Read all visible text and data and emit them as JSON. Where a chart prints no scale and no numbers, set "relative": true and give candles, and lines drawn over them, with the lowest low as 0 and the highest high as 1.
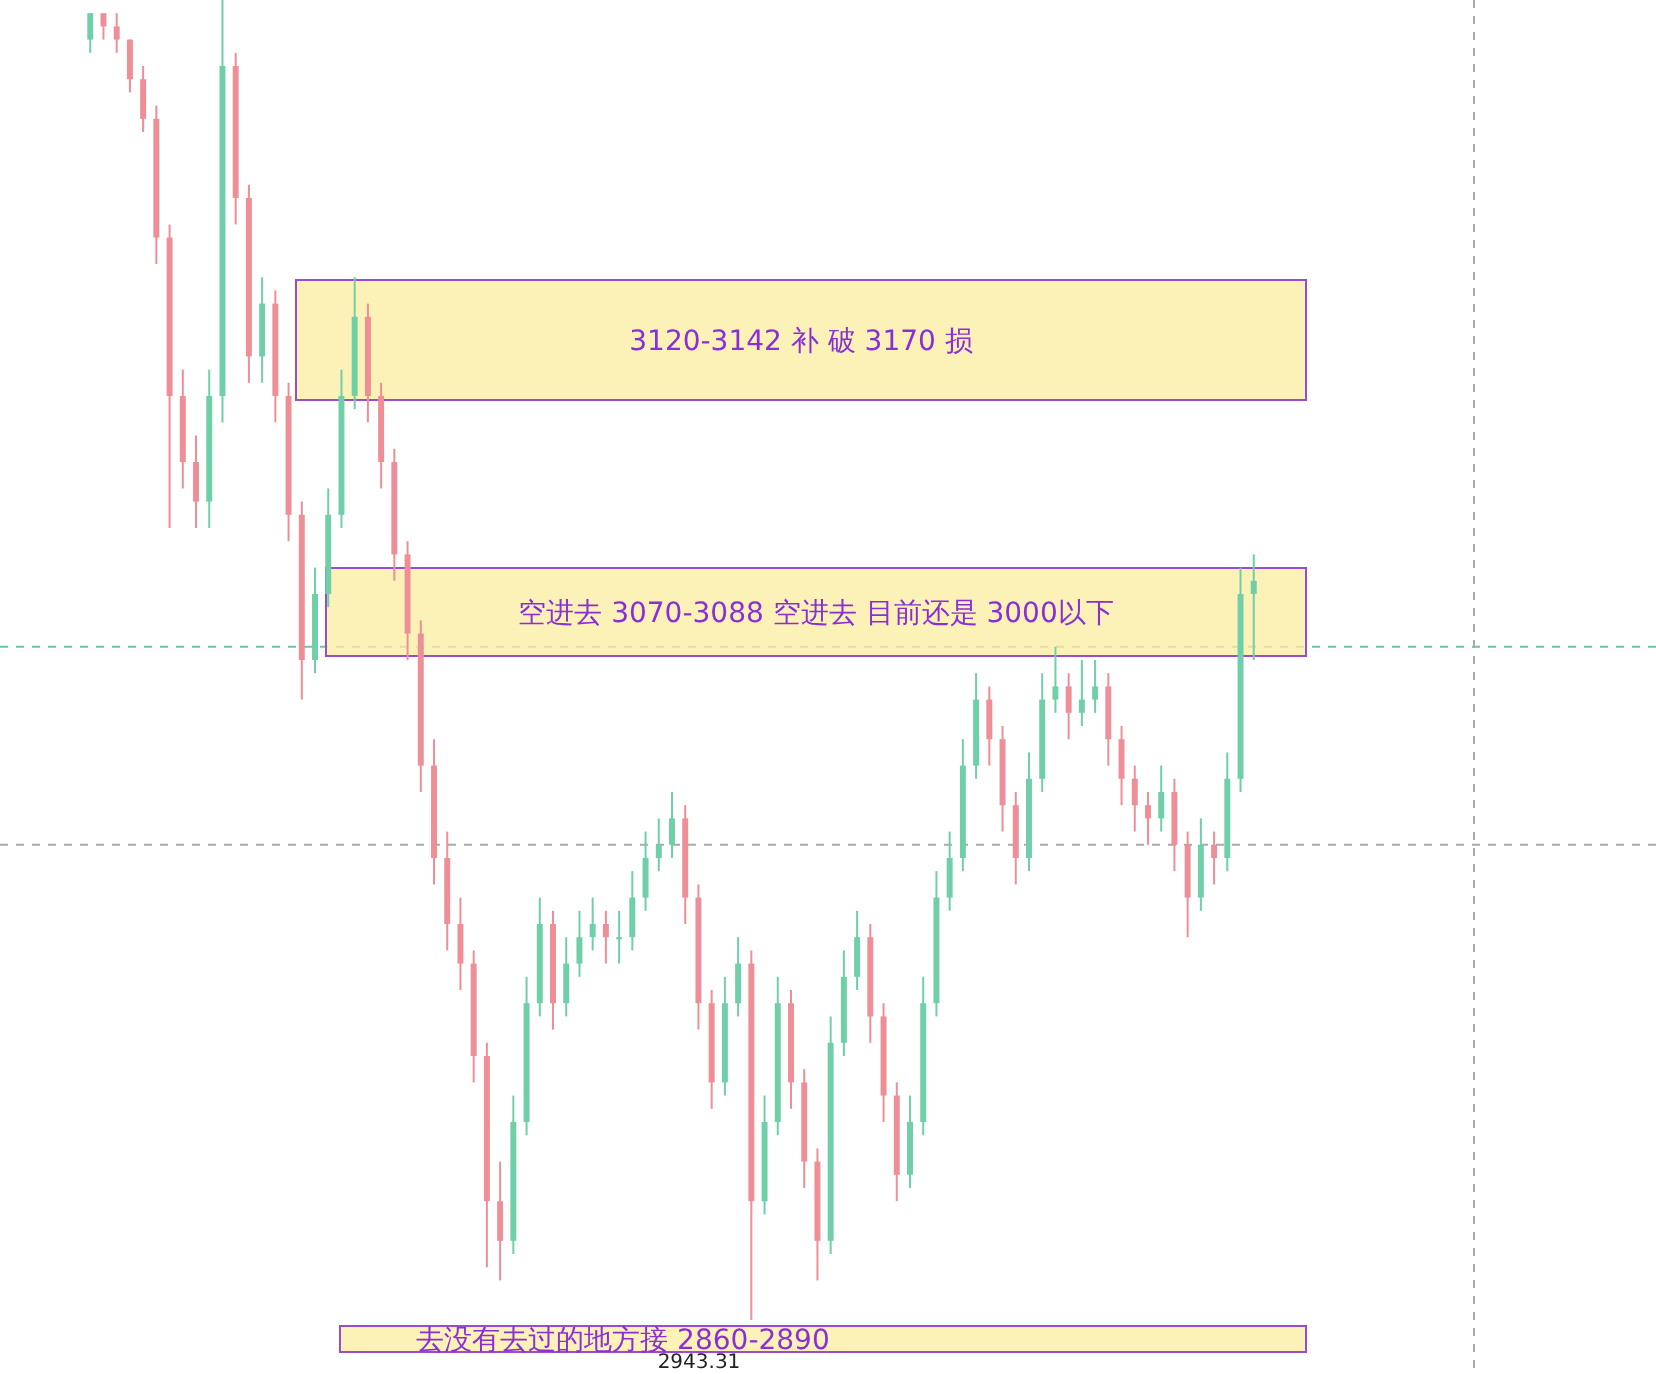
{
  "chart_data": {
    "type": "candlestick",
    "relative": true,
    "tick_labels": false,
    "categories": [
      null,
      null,
      null,
      null,
      null,
      null,
      null,
      null,
      null,
      null,
      null,
      null,
      null,
      null,
      null,
      null,
      null,
      null,
      null,
      null,
      null,
      null,
      null,
      null,
      null,
      null,
      null,
      null,
      null,
      null,
      null,
      null,
      null,
      null,
      null,
      null,
      null,
      null,
      null,
      null,
      null,
      null,
      null,
      null,
      null,
      null,
      null,
      null,
      null,
      null,
      null,
      null,
      null,
      null,
      null,
      null,
      null,
      null,
      null,
      null,
      null,
      null,
      null,
      null,
      null,
      null,
      null,
      null,
      null,
      null,
      null,
      null,
      null,
      null,
      null,
      null,
      null,
      null,
      null,
      null,
      null,
      null,
      null,
      null,
      null,
      null,
      null,
      null,
      null
    ],
    "ohlc": [
      [
        0.97,
        0.99,
        0.96,
        0.99
      ],
      [
        0.99,
        0.99,
        0.97,
        0.98
      ],
      [
        0.98,
        0.99,
        0.96,
        0.97
      ],
      [
        0.97,
        0.97,
        0.93,
        0.94
      ],
      [
        0.94,
        0.95,
        0.9,
        0.91
      ],
      [
        0.91,
        0.92,
        0.8,
        0.82
      ],
      [
        0.82,
        0.83,
        0.6,
        0.7
      ],
      [
        0.7,
        0.72,
        0.63,
        0.65
      ],
      [
        0.65,
        0.67,
        0.6,
        0.62
      ],
      [
        0.62,
        0.72,
        0.6,
        0.7
      ],
      [
        0.7,
        1.0,
        0.68,
        0.95
      ],
      [
        0.95,
        0.96,
        0.83,
        0.85
      ],
      [
        0.85,
        0.86,
        0.71,
        0.73
      ],
      [
        0.73,
        0.79,
        0.71,
        0.77
      ],
      [
        0.77,
        0.78,
        0.68,
        0.7
      ],
      [
        0.7,
        0.71,
        0.59,
        0.61
      ],
      [
        0.61,
        0.62,
        0.47,
        0.5
      ],
      [
        0.5,
        0.57,
        0.49,
        0.55
      ],
      [
        0.55,
        0.63,
        0.54,
        0.61
      ],
      [
        0.61,
        0.72,
        0.6,
        0.7
      ],
      [
        0.7,
        0.79,
        0.69,
        0.76
      ],
      [
        0.76,
        0.77,
        0.68,
        0.7
      ],
      [
        0.7,
        0.71,
        0.63,
        0.65
      ],
      [
        0.65,
        0.66,
        0.56,
        0.58
      ],
      [
        0.58,
        0.59,
        0.5,
        0.52
      ],
      [
        0.52,
        0.53,
        0.4,
        0.42
      ],
      [
        0.42,
        0.44,
        0.33,
        0.35
      ],
      [
        0.35,
        0.37,
        0.28,
        0.3
      ],
      [
        0.3,
        0.32,
        0.25,
        0.27
      ],
      [
        0.27,
        0.28,
        0.18,
        0.2
      ],
      [
        0.2,
        0.21,
        0.04,
        0.09
      ],
      [
        0.09,
        0.12,
        0.03,
        0.06
      ],
      [
        0.06,
        0.17,
        0.05,
        0.15
      ],
      [
        0.15,
        0.26,
        0.14,
        0.24
      ],
      [
        0.24,
        0.32,
        0.23,
        0.3
      ],
      [
        0.3,
        0.31,
        0.22,
        0.24
      ],
      [
        0.24,
        0.29,
        0.23,
        0.27
      ],
      [
        0.27,
        0.31,
        0.26,
        0.29
      ],
      [
        0.29,
        0.32,
        0.28,
        0.3
      ],
      [
        0.3,
        0.31,
        0.27,
        0.29
      ],
      [
        0.29,
        0.31,
        0.27,
        0.29
      ],
      [
        0.29,
        0.34,
        0.28,
        0.32
      ],
      [
        0.32,
        0.37,
        0.31,
        0.35
      ],
      [
        0.35,
        0.38,
        0.34,
        0.36
      ],
      [
        0.36,
        0.4,
        0.35,
        0.38
      ],
      [
        0.38,
        0.39,
        0.3,
        0.32
      ],
      [
        0.32,
        0.33,
        0.22,
        0.24
      ],
      [
        0.24,
        0.25,
        0.16,
        0.18
      ],
      [
        0.18,
        0.26,
        0.17,
        0.24
      ],
      [
        0.24,
        0.29,
        0.23,
        0.27
      ],
      [
        0.27,
        0.28,
        0.0,
        0.09
      ],
      [
        0.09,
        0.17,
        0.08,
        0.15
      ],
      [
        0.15,
        0.26,
        0.14,
        0.24
      ],
      [
        0.24,
        0.25,
        0.16,
        0.18
      ],
      [
        0.18,
        0.19,
        0.1,
        0.12
      ],
      [
        0.12,
        0.13,
        0.03,
        0.06
      ],
      [
        0.06,
        0.23,
        0.05,
        0.21
      ],
      [
        0.21,
        0.28,
        0.2,
        0.26
      ],
      [
        0.26,
        0.31,
        0.25,
        0.29
      ],
      [
        0.29,
        0.3,
        0.21,
        0.23
      ],
      [
        0.23,
        0.24,
        0.15,
        0.17
      ],
      [
        0.17,
        0.18,
        0.09,
        0.11
      ],
      [
        0.11,
        0.17,
        0.1,
        0.15
      ],
      [
        0.15,
        0.26,
        0.14,
        0.24
      ],
      [
        0.24,
        0.34,
        0.23,
        0.32
      ],
      [
        0.32,
        0.37,
        0.31,
        0.35
      ],
      [
        0.35,
        0.44,
        0.34,
        0.42
      ],
      [
        0.42,
        0.49,
        0.41,
        0.47
      ],
      [
        0.47,
        0.48,
        0.42,
        0.44
      ],
      [
        0.44,
        0.45,
        0.37,
        0.39
      ],
      [
        0.39,
        0.4,
        0.33,
        0.35
      ],
      [
        0.35,
        0.43,
        0.34,
        0.41
      ],
      [
        0.41,
        0.49,
        0.4,
        0.47
      ],
      [
        0.47,
        0.51,
        0.46,
        0.48
      ],
      [
        0.48,
        0.49,
        0.44,
        0.46
      ],
      [
        0.46,
        0.5,
        0.45,
        0.47
      ],
      [
        0.47,
        0.5,
        0.46,
        0.48
      ],
      [
        0.48,
        0.49,
        0.42,
        0.44
      ],
      [
        0.44,
        0.45,
        0.39,
        0.41
      ],
      [
        0.41,
        0.42,
        0.37,
        0.39
      ],
      [
        0.39,
        0.4,
        0.36,
        0.38
      ],
      [
        0.38,
        0.42,
        0.37,
        0.4
      ],
      [
        0.4,
        0.41,
        0.34,
        0.36
      ],
      [
        0.36,
        0.37,
        0.29,
        0.32
      ],
      [
        0.32,
        0.38,
        0.31,
        0.36
      ],
      [
        0.36,
        0.37,
        0.33,
        0.35
      ],
      [
        0.35,
        0.43,
        0.34,
        0.41
      ],
      [
        0.41,
        0.57,
        0.4,
        0.55
      ],
      [
        0.55,
        0.58,
        0.5,
        0.56
      ]
    ],
    "ref_lines": [
      {
        "axis": "y",
        "value": 0.51,
        "color": "#6cc4b0",
        "line_style": "dashed"
      },
      {
        "axis": "y",
        "value": 0.36,
        "color": "#aaaaaa",
        "line_style": "dashed"
      }
    ],
    "annotations": [
      "3120-3142 补 破 3170 损",
      "空进去 3070-3088 空进去 目前还是 3000以下",
      "去没有去过的地方接 2860-2890",
      "2943.31"
    ]
  }
}
